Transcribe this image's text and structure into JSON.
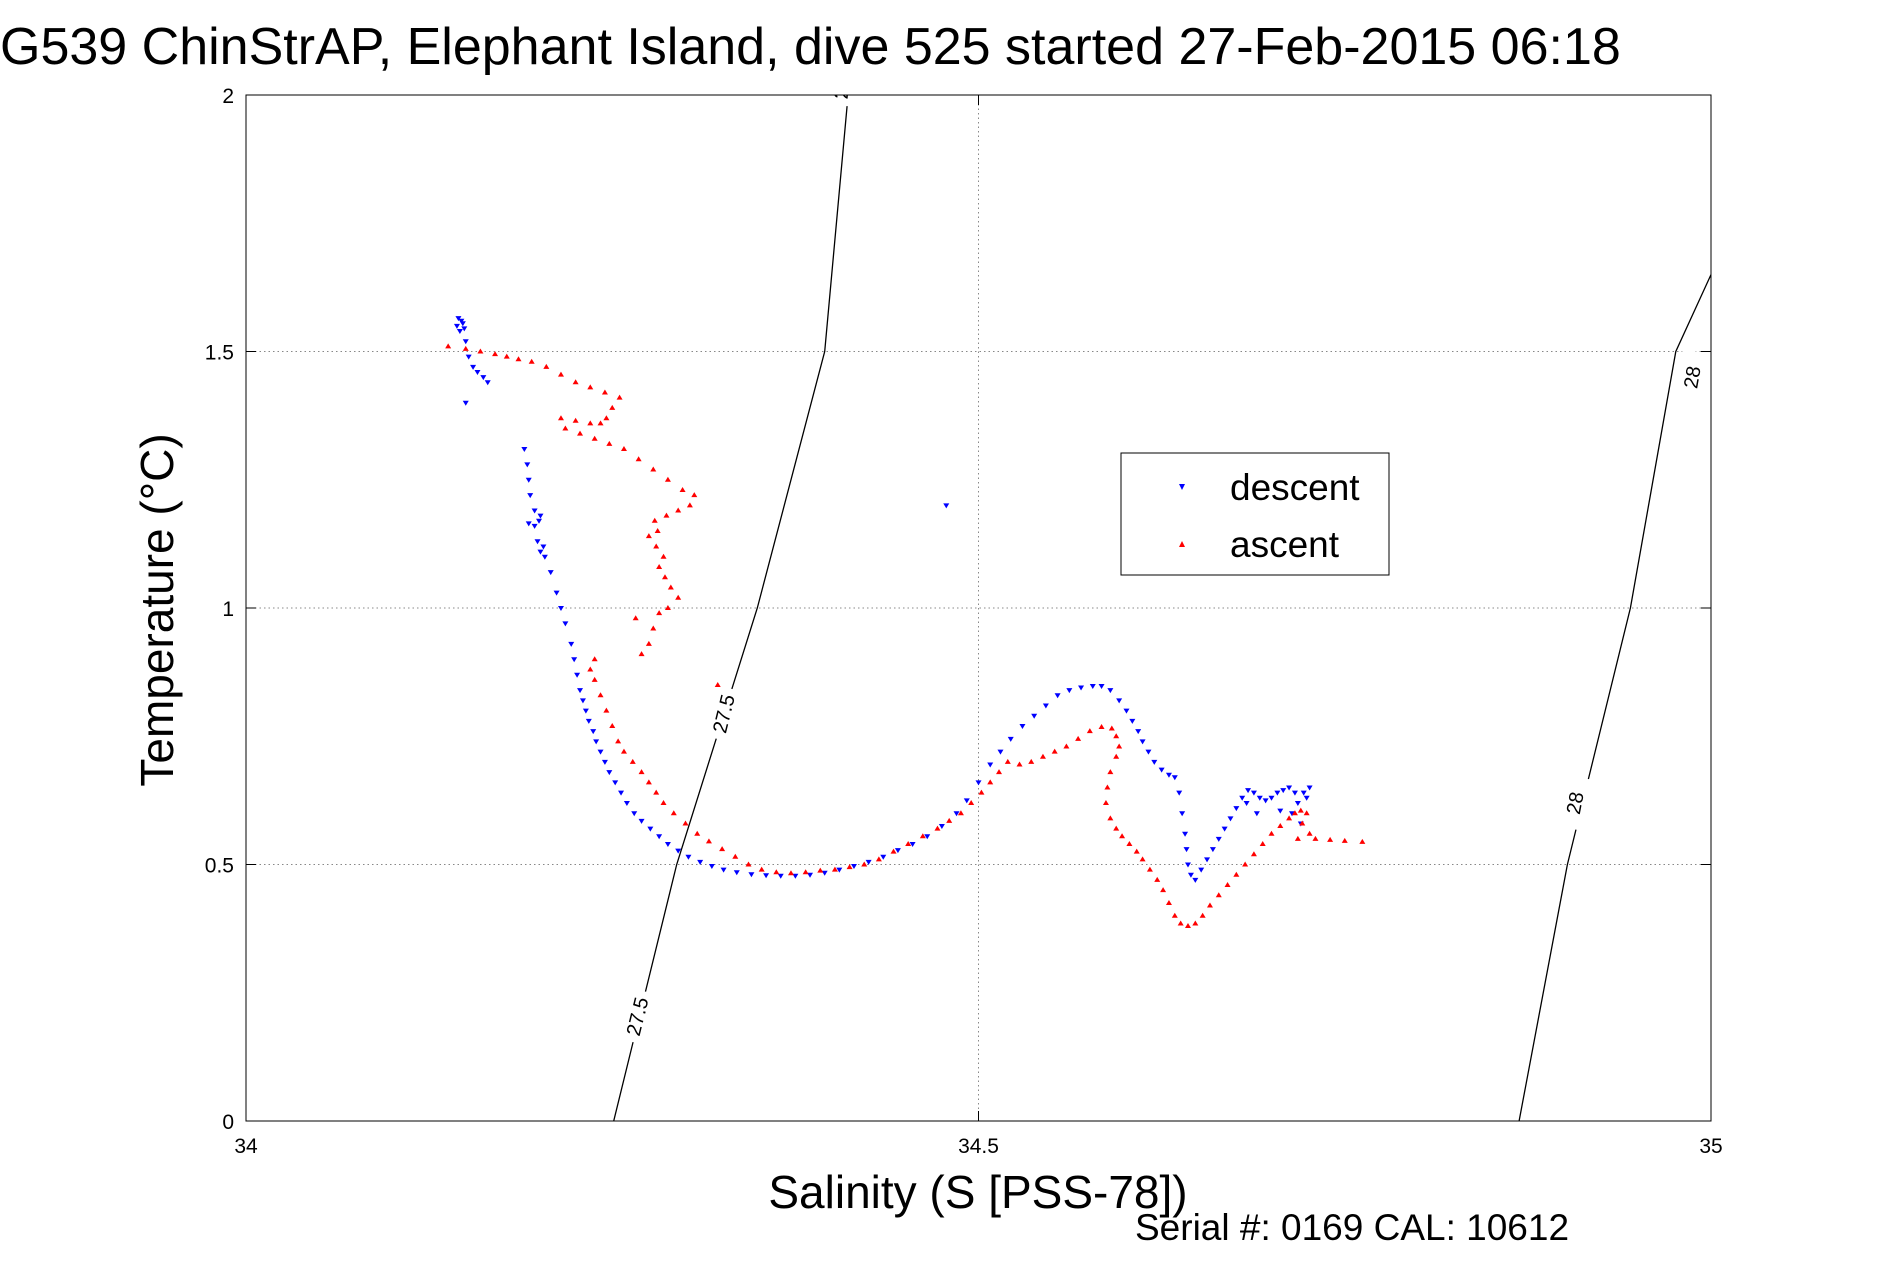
{
  "chart_data": {
    "type": "scatter",
    "title": "G539 ChinStrAP, Elephant Island, dive 525 started 27-Feb-2015 06:18",
    "xlabel": "Salinity (S [PSS-78])",
    "ylabel": "Temperature (°C)",
    "footer": "Serial #: 0169 CAL: 10612",
    "xlim": [
      34,
      35
    ],
    "ylim": [
      0,
      2
    ],
    "xticks": [
      "34",
      "34.5",
      "35"
    ],
    "yticks": [
      "0",
      "0.5",
      "1",
      "1.5",
      "2"
    ],
    "grid": true,
    "legend_position": "right-center",
    "series": [
      {
        "name": "descent",
        "marker": "triangle-down",
        "color": "#0000ff",
        "points": [
          [
            34.145,
            1.565
          ],
          [
            34.147,
            1.56
          ],
          [
            34.148,
            1.555
          ],
          [
            34.144,
            1.55
          ],
          [
            34.149,
            1.545
          ],
          [
            34.146,
            1.54
          ],
          [
            34.15,
            1.52
          ],
          [
            34.152,
            1.49
          ],
          [
            34.155,
            1.47
          ],
          [
            34.158,
            1.46
          ],
          [
            34.162,
            1.45
          ],
          [
            34.165,
            1.44
          ],
          [
            34.15,
            1.4
          ],
          [
            34.19,
            1.31
          ],
          [
            34.192,
            1.28
          ],
          [
            34.193,
            1.25
          ],
          [
            34.194,
            1.22
          ],
          [
            34.197,
            1.19
          ],
          [
            34.201,
            1.18
          ],
          [
            34.193,
            1.165
          ],
          [
            34.197,
            1.16
          ],
          [
            34.2,
            1.17
          ],
          [
            34.199,
            1.13
          ],
          [
            34.203,
            1.12
          ],
          [
            34.201,
            1.11
          ],
          [
            34.204,
            1.1
          ],
          [
            34.208,
            1.07
          ],
          [
            34.212,
            1.03
          ],
          [
            34.215,
            1.0
          ],
          [
            34.218,
            0.97
          ],
          [
            34.222,
            0.93
          ],
          [
            34.224,
            0.9
          ],
          [
            34.226,
            0.87
          ],
          [
            34.228,
            0.84
          ],
          [
            34.23,
            0.82
          ],
          [
            34.232,
            0.8
          ],
          [
            34.234,
            0.78
          ],
          [
            34.237,
            0.76
          ],
          [
            34.239,
            0.74
          ],
          [
            34.242,
            0.72
          ],
          [
            34.245,
            0.7
          ],
          [
            34.248,
            0.68
          ],
          [
            34.252,
            0.66
          ],
          [
            34.256,
            0.64
          ],
          [
            34.26,
            0.62
          ],
          [
            34.265,
            0.6
          ],
          [
            34.27,
            0.585
          ],
          [
            34.276,
            0.57
          ],
          [
            34.282,
            0.555
          ],
          [
            34.288,
            0.54
          ],
          [
            34.295,
            0.527
          ],
          [
            34.302,
            0.515
          ],
          [
            34.31,
            0.505
          ],
          [
            34.318,
            0.497
          ],
          [
            34.326,
            0.49
          ],
          [
            34.335,
            0.485
          ],
          [
            34.345,
            0.481
          ],
          [
            34.355,
            0.479
          ],
          [
            34.365,
            0.478
          ],
          [
            34.375,
            0.478
          ],
          [
            34.385,
            0.48
          ],
          [
            34.395,
            0.484
          ],
          [
            34.405,
            0.49
          ],
          [
            34.415,
            0.497
          ],
          [
            34.425,
            0.505
          ],
          [
            34.435,
            0.515
          ],
          [
            34.445,
            0.528
          ],
          [
            34.455,
            0.54
          ],
          [
            34.465,
            0.555
          ],
          [
            34.475,
            0.575
          ],
          [
            34.485,
            0.6
          ],
          [
            34.492,
            0.625
          ],
          [
            34.5,
            0.66
          ],
          [
            34.508,
            0.695
          ],
          [
            34.515,
            0.72
          ],
          [
            34.522,
            0.745
          ],
          [
            34.53,
            0.77
          ],
          [
            34.538,
            0.79
          ],
          [
            34.546,
            0.81
          ],
          [
            34.554,
            0.83
          ],
          [
            34.562,
            0.84
          ],
          [
            34.57,
            0.845
          ],
          [
            34.578,
            0.848
          ],
          [
            34.584,
            0.848
          ],
          [
            34.59,
            0.84
          ],
          [
            34.596,
            0.82
          ],
          [
            34.601,
            0.8
          ],
          [
            34.605,
            0.78
          ],
          [
            34.609,
            0.76
          ],
          [
            34.612,
            0.74
          ],
          [
            34.616,
            0.72
          ],
          [
            34.62,
            0.7
          ],
          [
            34.625,
            0.685
          ],
          [
            34.63,
            0.675
          ],
          [
            34.634,
            0.67
          ],
          [
            34.637,
            0.64
          ],
          [
            34.639,
            0.6
          ],
          [
            34.641,
            0.56
          ],
          [
            34.642,
            0.53
          ],
          [
            34.643,
            0.5
          ],
          [
            34.645,
            0.48
          ],
          [
            34.648,
            0.47
          ],
          [
            34.652,
            0.49
          ],
          [
            34.656,
            0.51
          ],
          [
            34.66,
            0.53
          ],
          [
            34.664,
            0.55
          ],
          [
            34.668,
            0.57
          ],
          [
            34.672,
            0.59
          ],
          [
            34.676,
            0.61
          ],
          [
            34.68,
            0.63
          ],
          [
            34.684,
            0.645
          ],
          [
            34.688,
            0.64
          ],
          [
            34.692,
            0.63
          ],
          [
            34.696,
            0.625
          ],
          [
            34.7,
            0.63
          ],
          [
            34.704,
            0.64
          ],
          [
            34.708,
            0.645
          ],
          [
            34.712,
            0.65
          ],
          [
            34.716,
            0.64
          ],
          [
            34.718,
            0.62
          ],
          [
            34.714,
            0.6
          ],
          [
            34.72,
            0.58
          ],
          [
            34.724,
            0.63
          ],
          [
            34.726,
            0.65
          ],
          [
            34.722,
            0.64
          ],
          [
            34.683,
            0.62
          ],
          [
            34.69,
            0.6
          ],
          [
            34.706,
            0.605
          ],
          [
            34.478,
            1.2
          ]
        ]
      },
      {
        "name": "ascent",
        "marker": "triangle-up",
        "color": "#ff0000",
        "points": [
          [
            34.138,
            1.51
          ],
          [
            34.15,
            1.505
          ],
          [
            34.16,
            1.5
          ],
          [
            34.17,
            1.495
          ],
          [
            34.178,
            1.49
          ],
          [
            34.186,
            1.485
          ],
          [
            34.195,
            1.48
          ],
          [
            34.205,
            1.47
          ],
          [
            34.215,
            1.455
          ],
          [
            34.225,
            1.44
          ],
          [
            34.235,
            1.43
          ],
          [
            34.245,
            1.42
          ],
          [
            34.255,
            1.41
          ],
          [
            34.25,
            1.39
          ],
          [
            34.246,
            1.37
          ],
          [
            34.242,
            1.36
          ],
          [
            34.235,
            1.36
          ],
          [
            34.225,
            1.365
          ],
          [
            34.215,
            1.37
          ],
          [
            34.218,
            1.35
          ],
          [
            34.228,
            1.34
          ],
          [
            34.238,
            1.33
          ],
          [
            34.248,
            1.32
          ],
          [
            34.258,
            1.31
          ],
          [
            34.268,
            1.29
          ],
          [
            34.278,
            1.27
          ],
          [
            34.288,
            1.25
          ],
          [
            34.298,
            1.23
          ],
          [
            34.306,
            1.22
          ],
          [
            34.303,
            1.2
          ],
          [
            34.295,
            1.19
          ],
          [
            34.287,
            1.18
          ],
          [
            34.279,
            1.17
          ],
          [
            34.281,
            1.15
          ],
          [
            34.275,
            1.14
          ],
          [
            34.28,
            1.12
          ],
          [
            34.285,
            1.1
          ],
          [
            34.282,
            1.08
          ],
          [
            34.286,
            1.06
          ],
          [
            34.29,
            1.04
          ],
          [
            34.295,
            1.02
          ],
          [
            34.288,
            1.0
          ],
          [
            34.282,
            0.99
          ],
          [
            34.278,
            0.96
          ],
          [
            34.275,
            0.93
          ],
          [
            34.27,
            0.91
          ],
          [
            34.266,
            0.98
          ],
          [
            34.322,
            0.85
          ],
          [
            34.238,
            0.9
          ],
          [
            34.235,
            0.88
          ],
          [
            34.238,
            0.86
          ],
          [
            34.242,
            0.83
          ],
          [
            34.246,
            0.8
          ],
          [
            34.25,
            0.77
          ],
          [
            34.254,
            0.74
          ],
          [
            34.258,
            0.72
          ],
          [
            34.264,
            0.7
          ],
          [
            34.27,
            0.68
          ],
          [
            34.275,
            0.66
          ],
          [
            34.28,
            0.64
          ],
          [
            34.285,
            0.62
          ],
          [
            34.292,
            0.6
          ],
          [
            34.3,
            0.58
          ],
          [
            34.308,
            0.56
          ],
          [
            34.316,
            0.545
          ],
          [
            34.325,
            0.53
          ],
          [
            34.334,
            0.515
          ],
          [
            34.343,
            0.5
          ],
          [
            34.352,
            0.49
          ],
          [
            34.362,
            0.485
          ],
          [
            34.372,
            0.483
          ],
          [
            34.382,
            0.485
          ],
          [
            34.392,
            0.488
          ],
          [
            34.402,
            0.49
          ],
          [
            34.412,
            0.495
          ],
          [
            34.422,
            0.5
          ],
          [
            34.432,
            0.51
          ],
          [
            34.442,
            0.525
          ],
          [
            34.452,
            0.54
          ],
          [
            34.462,
            0.555
          ],
          [
            34.472,
            0.57
          ],
          [
            34.48,
            0.585
          ],
          [
            34.488,
            0.6
          ],
          [
            34.495,
            0.62
          ],
          [
            34.502,
            0.64
          ],
          [
            34.508,
            0.66
          ],
          [
            34.514,
            0.68
          ],
          [
            34.52,
            0.7
          ],
          [
            34.528,
            0.695
          ],
          [
            34.536,
            0.7
          ],
          [
            34.544,
            0.71
          ],
          [
            34.552,
            0.72
          ],
          [
            34.56,
            0.73
          ],
          [
            34.568,
            0.745
          ],
          [
            34.576,
            0.76
          ],
          [
            34.584,
            0.768
          ],
          [
            34.591,
            0.765
          ],
          [
            34.594,
            0.75
          ],
          [
            34.596,
            0.73
          ],
          [
            34.594,
            0.71
          ],
          [
            34.59,
            0.68
          ],
          [
            34.588,
            0.65
          ],
          [
            34.587,
            0.62
          ],
          [
            34.59,
            0.59
          ],
          [
            34.594,
            0.57
          ],
          [
            34.598,
            0.555
          ],
          [
            34.603,
            0.54
          ],
          [
            34.608,
            0.525
          ],
          [
            34.612,
            0.51
          ],
          [
            34.617,
            0.49
          ],
          [
            34.622,
            0.47
          ],
          [
            34.626,
            0.45
          ],
          [
            34.63,
            0.425
          ],
          [
            34.634,
            0.4
          ],
          [
            34.638,
            0.385
          ],
          [
            34.643,
            0.38
          ],
          [
            34.648,
            0.385
          ],
          [
            34.653,
            0.4
          ],
          [
            34.658,
            0.42
          ],
          [
            34.664,
            0.44
          ],
          [
            34.67,
            0.46
          ],
          [
            34.676,
            0.48
          ],
          [
            34.682,
            0.5
          ],
          [
            34.688,
            0.52
          ],
          [
            34.694,
            0.54
          ],
          [
            34.7,
            0.56
          ],
          [
            34.706,
            0.575
          ],
          [
            34.712,
            0.59
          ],
          [
            34.716,
            0.6
          ],
          [
            34.72,
            0.605
          ],
          [
            34.724,
            0.6
          ],
          [
            34.721,
            0.58
          ],
          [
            34.726,
            0.56
          ],
          [
            34.73,
            0.55
          ],
          [
            34.74,
            0.548
          ],
          [
            34.75,
            0.546
          ],
          [
            34.762,
            0.544
          ],
          [
            34.718,
            0.55
          ]
        ]
      }
    ],
    "isopycnals": [
      {
        "label": "27.5",
        "points": [
          [
            34.251,
            0
          ],
          [
            34.294,
            0.5
          ],
          [
            34.349,
            1.0
          ],
          [
            34.395,
            1.5
          ],
          [
            34.411,
            2.0
          ]
        ],
        "label_at": [
          [
            34.267,
            0.204
          ],
          [
            34.326,
            0.794
          ],
          [
            34.407,
            2.03
          ]
        ]
      },
      {
        "label": "28",
        "points": [
          [
            34.869,
            0
          ],
          [
            34.902,
            0.5
          ],
          [
            34.945,
            1.0
          ],
          [
            34.976,
            1.5
          ],
          [
            35.0,
            1.65
          ]
        ],
        "label_at": [
          [
            34.907,
            0.62
          ],
          [
            34.987,
            1.45
          ]
        ]
      }
    ]
  }
}
